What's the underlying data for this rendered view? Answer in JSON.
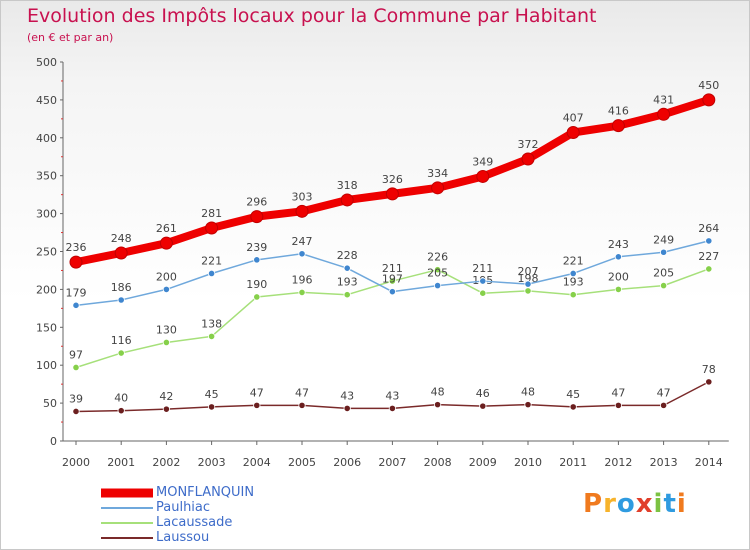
{
  "header": {
    "title": "Evolution des Impôts locaux pour la Commune par Habitant",
    "subtitle": "(en € et par an)"
  },
  "logo": {
    "text": "Proxiti",
    "colors": [
      "#f07a1e",
      "#f7b32b",
      "#2f9be0",
      "#e13f2b",
      "#7cc242",
      "#2f9be0",
      "#f07a1e"
    ]
  },
  "chart_data": {
    "type": "line",
    "title": "Evolution des Impôts locaux pour la Commune par Habitant",
    "subtitle": "(en € et par an)",
    "x": [
      "2000",
      "2001",
      "2002",
      "2003",
      "2004",
      "2005",
      "2006",
      "2007",
      "2008",
      "2009",
      "2010",
      "2011",
      "2012",
      "2013",
      "2014"
    ],
    "ylim": [
      0,
      500
    ],
    "yticks": [
      0,
      50,
      100,
      150,
      200,
      250,
      300,
      350,
      400,
      450,
      500
    ],
    "grid": false,
    "legend_position": "bottom-left",
    "series": [
      {
        "name": "MONFLANQUIN",
        "color": "#ee0000",
        "values": [
          236,
          248,
          261,
          281,
          296,
          303,
          318,
          326,
          334,
          349,
          372,
          407,
          416,
          431,
          450
        ]
      },
      {
        "name": "Paulhiac",
        "color": "#6fa8dc",
        "marker": "#3f86cf",
        "values": [
          179,
          186,
          200,
          221,
          239,
          247,
          228,
          197,
          205,
          211,
          207,
          221,
          243,
          249,
          264
        ]
      },
      {
        "name": "Lacaussade",
        "color": "#a6e07a",
        "marker": "#86d04a",
        "values": [
          97,
          116,
          130,
          138,
          190,
          196,
          193,
          211,
          226,
          195,
          198,
          193,
          200,
          205,
          227
        ]
      },
      {
        "name": "Laussou",
        "color": "#7a2a2a",
        "marker": "#6b1f1f",
        "values": [
          39,
          40,
          42,
          45,
          47,
          47,
          43,
          43,
          48,
          46,
          48,
          45,
          47,
          47,
          78
        ]
      }
    ]
  }
}
